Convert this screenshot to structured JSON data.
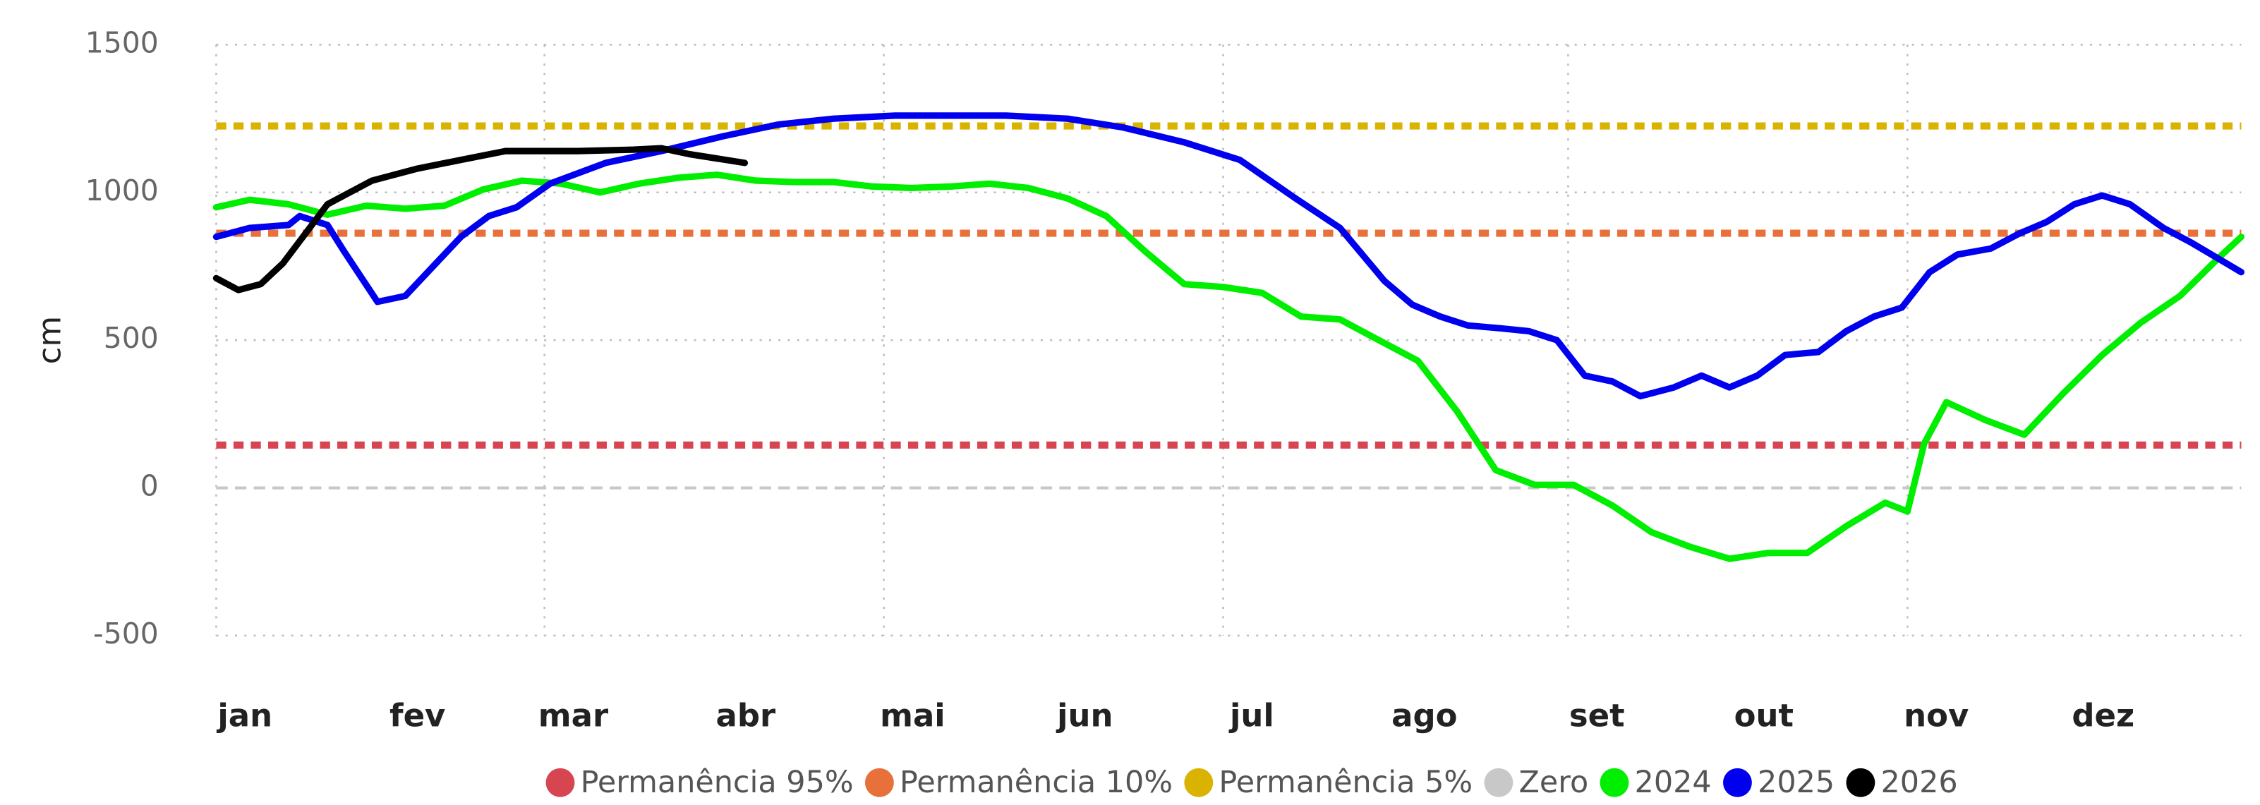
{
  "chart_data": {
    "type": "line",
    "y_label": "cm",
    "xlim": [
      1,
      365
    ],
    "xticks": [
      {
        "value": 1,
        "label": "jan"
      },
      {
        "value": 32,
        "label": "fev"
      },
      {
        "value": 60,
        "label": "mar"
      },
      {
        "value": 91,
        "label": "abr"
      },
      {
        "value": 121,
        "label": "mai"
      },
      {
        "value": 152,
        "label": "jun"
      },
      {
        "value": 182,
        "label": "jul"
      },
      {
        "value": 213,
        "label": "ago"
      },
      {
        "value": 244,
        "label": "set"
      },
      {
        "value": 274,
        "label": "out"
      },
      {
        "value": 305,
        "label": "nov"
      },
      {
        "value": 335,
        "label": "dez"
      }
    ],
    "ylim": [
      -500,
      1500
    ],
    "yticks": [
      -500,
      0,
      500,
      1000,
      1500
    ],
    "grid": true,
    "legend": "bottom",
    "series": [
      {
        "name": "Permanência 95%",
        "color": "#d64550",
        "value": 145,
        "style": "dashed"
      },
      {
        "name": "Permanência 10%",
        "color": "#e8703a",
        "value": 862,
        "style": "dashed"
      },
      {
        "name": "Permanência 5%",
        "color": "#d9b300",
        "value": 1225,
        "style": "dashed"
      },
      {
        "name": "Zero",
        "color": "#c8c8c8",
        "value": 0,
        "style": "dashed"
      },
      {
        "name": "2024",
        "color": "#00ee00",
        "x": [
          1,
          7,
          14,
          21,
          28,
          35,
          42,
          49,
          56,
          63,
          70,
          77,
          84,
          91,
          98,
          105,
          112,
          119,
          126,
          133,
          140,
          147,
          154,
          161,
          168,
          175,
          182,
          189,
          196,
          203,
          210,
          217,
          224,
          231,
          238,
          245,
          252,
          259,
          266,
          273,
          280,
          287,
          294,
          301,
          305,
          308,
          312,
          319,
          326,
          333,
          340,
          347,
          354,
          361,
          365
        ],
        "values": [
          950,
          975,
          960,
          925,
          955,
          945,
          955,
          1010,
          1040,
          1030,
          1000,
          1030,
          1050,
          1060,
          1040,
          1035,
          1035,
          1020,
          1015,
          1020,
          1030,
          1015,
          980,
          920,
          800,
          690,
          680,
          660,
          580,
          570,
          500,
          430,
          260,
          60,
          10,
          10,
          -60,
          -150,
          -200,
          -240,
          -220,
          -220,
          -130,
          -50,
          -80,
          150,
          290,
          230,
          180,
          320,
          450,
          560,
          650,
          780,
          850
        ]
      },
      {
        "name": "2025",
        "color": "#0000ee",
        "x": [
          1,
          7,
          14,
          16,
          21,
          24,
          30,
          35,
          40,
          45,
          50,
          55,
          61,
          71,
          81,
          92,
          102,
          112,
          123,
          143,
          154,
          164,
          175,
          185,
          195,
          203,
          211,
          216,
          221,
          226,
          232,
          237,
          242,
          247,
          252,
          257,
          263,
          268,
          273,
          278,
          283,
          289,
          294,
          299,
          304,
          309,
          314,
          320,
          325,
          330,
          335,
          340,
          345,
          351,
          356,
          365
        ],
        "values": [
          850,
          880,
          890,
          920,
          890,
          800,
          630,
          650,
          750,
          850,
          920,
          950,
          1030,
          1100,
          1140,
          1190,
          1230,
          1250,
          1260,
          1260,
          1250,
          1220,
          1170,
          1110,
          980,
          880,
          700,
          620,
          580,
          550,
          540,
          530,
          500,
          380,
          360,
          310,
          340,
          380,
          340,
          380,
          450,
          460,
          530,
          580,
          610,
          730,
          790,
          810,
          860,
          900,
          960,
          990,
          960,
          880,
          830,
          730
        ]
      },
      {
        "name": "2026",
        "color": "#000000",
        "x": [
          1,
          5,
          9,
          13,
          17,
          21,
          29,
          37,
          45,
          53,
          66,
          76,
          81,
          86,
          96
        ],
        "values": [
          710,
          670,
          690,
          760,
          860,
          960,
          1040,
          1080,
          1110,
          1140,
          1140,
          1145,
          1150,
          1130,
          1100
        ]
      }
    ]
  }
}
